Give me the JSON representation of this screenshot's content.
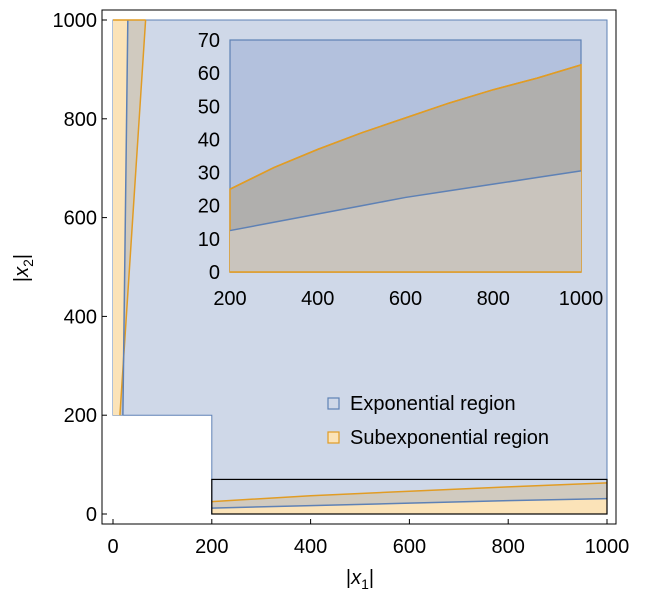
{
  "chart_data": [
    {
      "type": "area",
      "xlabel": "|x1|",
      "ylabel": "|x2|",
      "xlim": [
        0,
        1000
      ],
      "ylim": [
        0,
        1000
      ],
      "xticks": [
        "0",
        "200",
        "400",
        "600",
        "800",
        "1000"
      ],
      "yticks": [
        "0",
        "200",
        "400",
        "600",
        "800",
        "1000"
      ],
      "legend_position": "bottom-right",
      "series": [
        {
          "name": "Exponential region",
          "description": "all points with |x1|>=200 or |x2|>=200, above the blue boundary curve",
          "boundary_lower": {
            "x": [
              200,
              400,
              600,
              800,
              1000
            ],
            "y": [
              12,
              17,
              22,
              27,
              31
            ]
          },
          "boundary_upper": {
            "x": [
              20,
              25,
              30
            ],
            "y": [
              200,
              600,
              1000
            ]
          }
        },
        {
          "name": "Subexponential region",
          "description": "bands along the axes bounded by the orange curves",
          "boundary_lower": {
            "x": [
              200,
              400,
              600,
              800,
              1000
            ],
            "y": [
              25,
              37,
              46,
              55,
              63
            ]
          },
          "boundary_upper": {
            "x": [
              14,
              40,
              66
            ],
            "y": [
              200,
              600,
              1000
            ]
          }
        }
      ]
    },
    {
      "type": "area",
      "inset": true,
      "xlim": [
        200,
        1000
      ],
      "ylim": [
        0,
        70
      ],
      "xticks": [
        "200",
        "400",
        "600",
        "800",
        "1000"
      ],
      "yticks": [
        "0",
        "10",
        "20",
        "30",
        "40",
        "50",
        "60",
        "70"
      ],
      "series": [
        {
          "name": "Exponential region",
          "x": [
            200,
            300,
            400,
            500,
            600,
            700,
            800,
            900,
            1000
          ],
          "y": [
            12.5,
            15,
            17.5,
            20,
            22.5,
            24.5,
            26.5,
            28.5,
            30.5
          ]
        },
        {
          "name": "Subexponential region",
          "x": [
            200,
            300,
            400,
            500,
            600,
            700,
            800,
            900,
            1000
          ],
          "y": [
            25,
            31.5,
            37,
            42,
            46.5,
            51,
            55,
            58.5,
            62.5
          ]
        }
      ]
    }
  ],
  "colors": {
    "blue_fill": "#cfd8e8",
    "blue_line": "#5e81b5",
    "orange_fill": "#fbe3b8",
    "orange_line": "#e19c24",
    "gray_overlap": "#c8c5bf"
  },
  "legend": {
    "items": [
      "Exponential region",
      "Subexponential region"
    ]
  }
}
